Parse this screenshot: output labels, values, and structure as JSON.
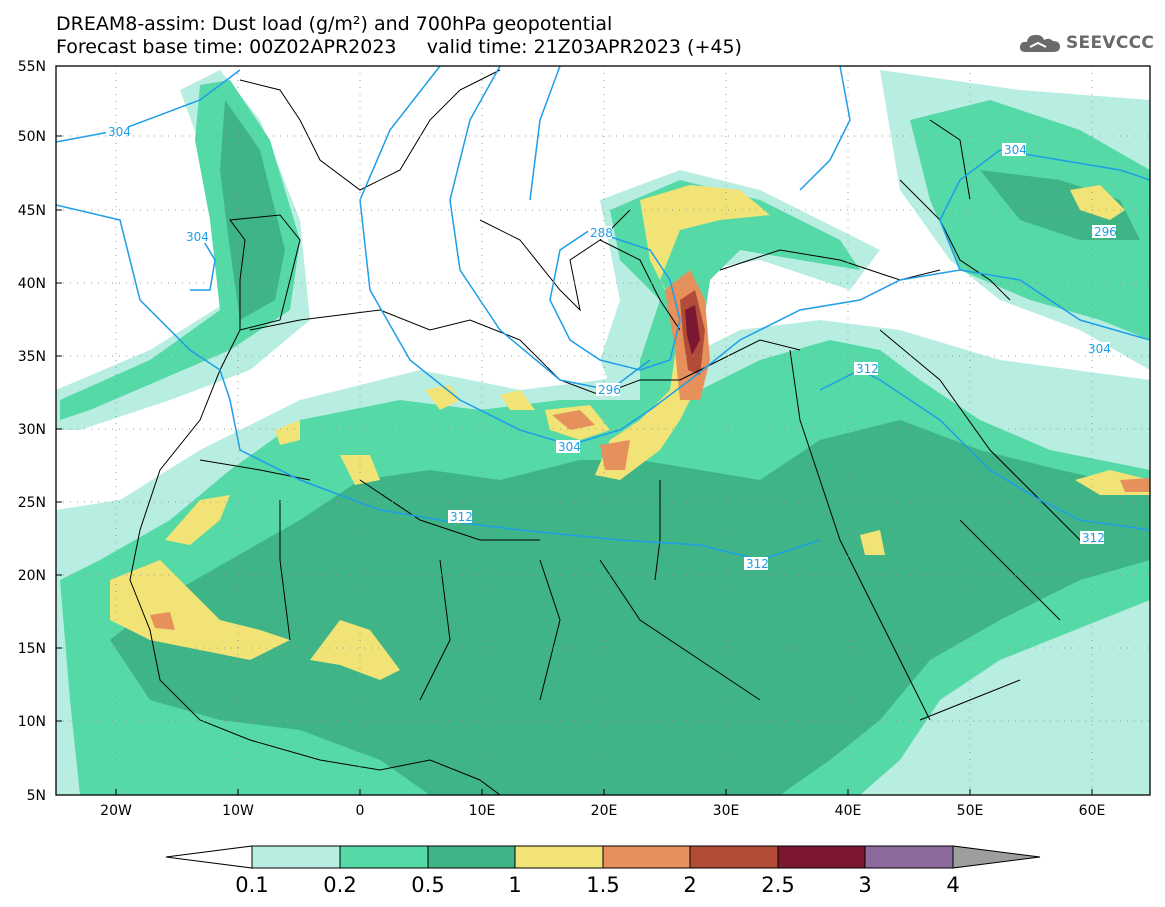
{
  "title": {
    "line1": "DREAM8-assim: Dust load (g/m²) and 700hPa geopotential",
    "line2": "Forecast base time: 00Z02APR2023     valid time: 21Z03APR2023 (+45)"
  },
  "logo": {
    "icon": "cloud-icon",
    "text": "SEEVCCC"
  },
  "axes": {
    "lat_labels": [
      "55N",
      "50N",
      "45N",
      "40N",
      "35N",
      "30N",
      "25N",
      "20N",
      "15N",
      "10N",
      "5N"
    ],
    "lon_labels": [
      "20W",
      "10W",
      "0",
      "10E",
      "20E",
      "30E",
      "40E",
      "50E",
      "60E"
    ]
  },
  "contours": [
    "304",
    "304",
    "304",
    "288",
    "296",
    "304",
    "312",
    "312",
    "312",
    "296",
    "304",
    "312"
  ],
  "colorbar": {
    "labels": [
      "0.1",
      "0.2",
      "0.5",
      "1",
      "1.5",
      "2",
      "2.5",
      "3",
      "4"
    ],
    "colors": [
      "#ffffff",
      "#b8eee2",
      "#55d9a6",
      "#3fb487",
      "#f2e377",
      "#e6905c",
      "#b24b38",
      "#7c1732",
      "#8d6a9e",
      "#9e9e9e"
    ]
  }
}
